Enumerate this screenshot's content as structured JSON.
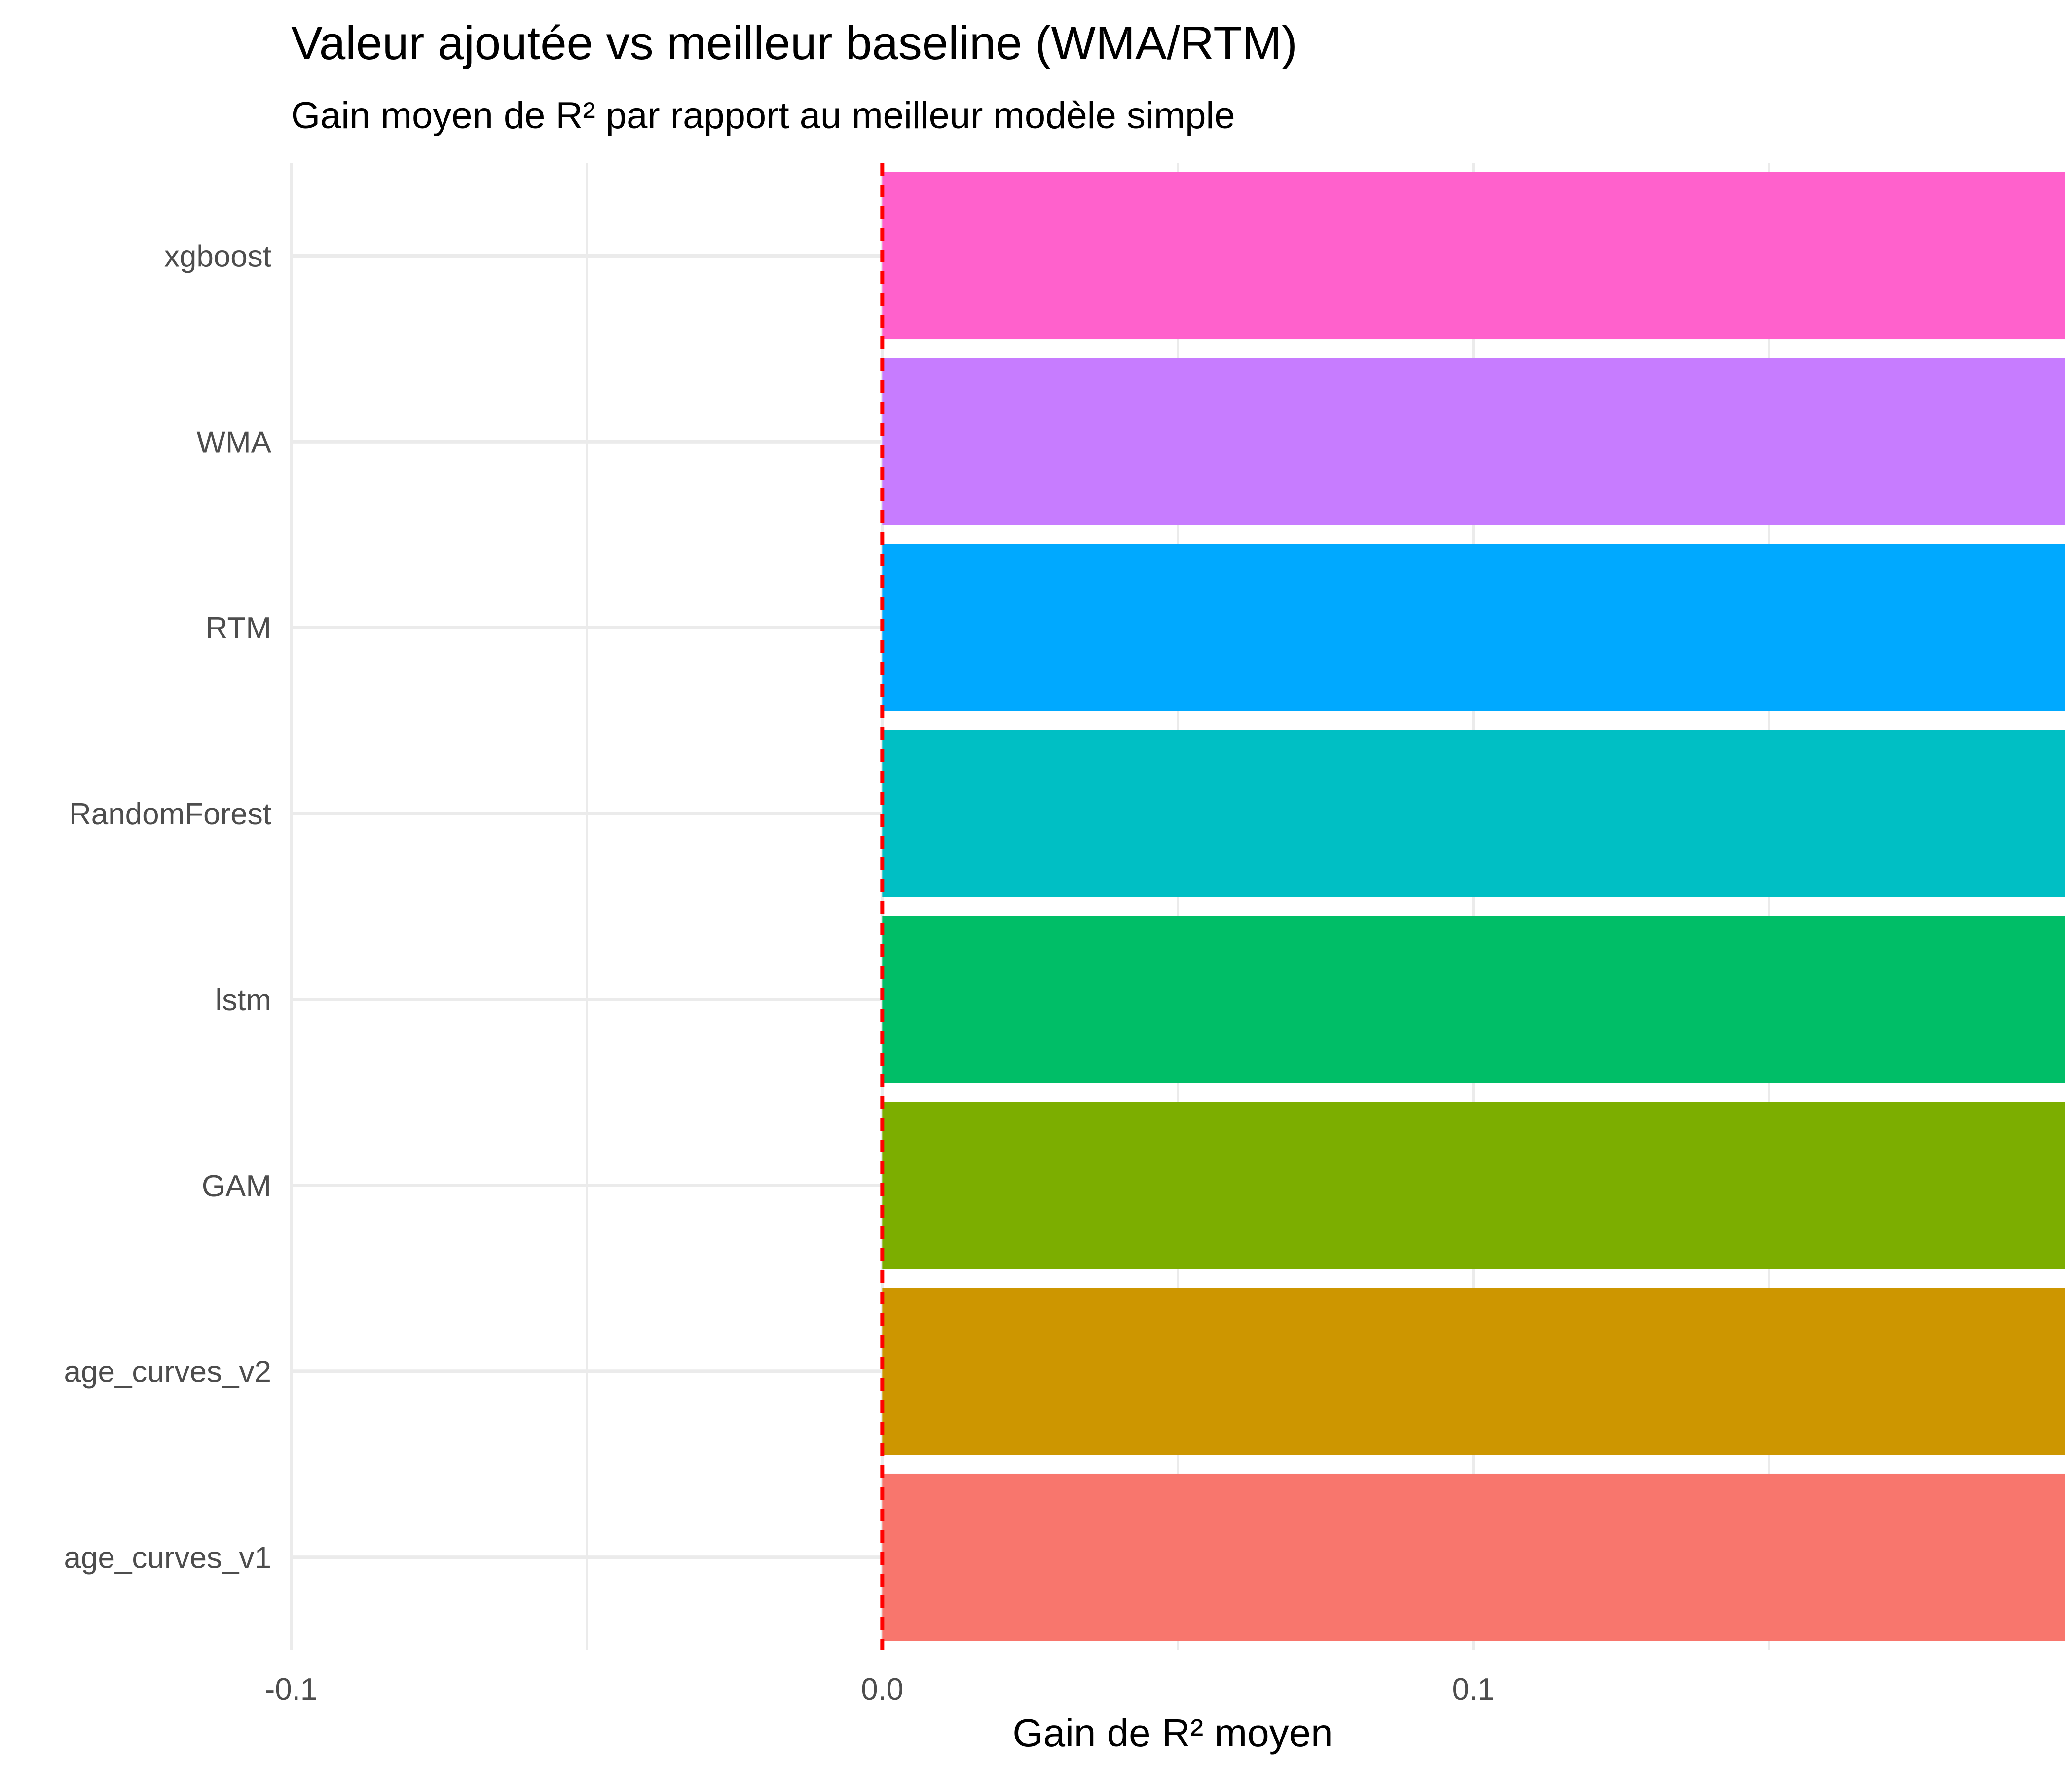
{
  "chart_data": {
    "type": "bar",
    "orientation": "horizontal",
    "title": "Valeur ajoutée vs meilleur baseline (WMA/RTM)",
    "subtitle": "Gain moyen de R² par rapport au meilleur modèle simple",
    "xlabel": "Gain de R² moyen",
    "ylabel": "",
    "xlim": [
      -0.1,
      0.2
    ],
    "x_ticks": [
      -0.1,
      0.0,
      0.1
    ],
    "x_tick_labels": [
      "-0.1",
      "0.0",
      "0.1"
    ],
    "reference_line": {
      "x": 0.0,
      "color": "#FF0000",
      "style": "dashed"
    },
    "grid": true,
    "legend": "none",
    "categories": [
      "xgboost",
      "WMA",
      "RTM",
      "RandomForest",
      "lstm",
      "GAM",
      "age_curves_v2",
      "age_curves_v1"
    ],
    "values": [
      0.2,
      0.2,
      0.2,
      0.2,
      0.2,
      0.2,
      0.2,
      0.2
    ],
    "colors": [
      "#FF61CC",
      "#C77CFF",
      "#00A9FF",
      "#00BFC4",
      "#00BE67",
      "#7CAE00",
      "#CD9600",
      "#F8766D"
    ]
  }
}
